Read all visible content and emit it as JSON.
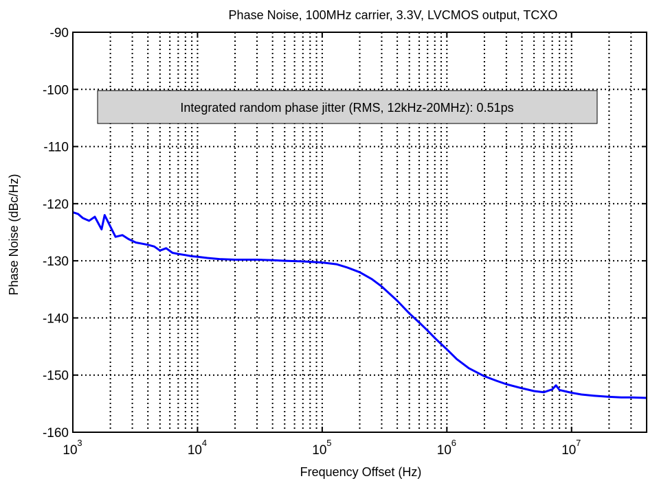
{
  "chart_data": {
    "type": "line",
    "title": "Phase Noise, 100MHz carrier, 3.3V, LVCMOS output, TCXO",
    "xlabel": "Frequency Offset (Hz)",
    "ylabel": "Phase Noise (dBc/Hz)",
    "x_scale": "log",
    "xlim": [
      1000,
      40000000
    ],
    "ylim": [
      -160,
      -90
    ],
    "x_ticks": [
      1000,
      10000,
      100000,
      1000000,
      10000000
    ],
    "x_tick_labels": [
      {
        "base": "10",
        "exp": "3"
      },
      {
        "base": "10",
        "exp": "4"
      },
      {
        "base": "10",
        "exp": "5"
      },
      {
        "base": "10",
        "exp": "6"
      },
      {
        "base": "10",
        "exp": "7"
      }
    ],
    "y_ticks": [
      -160,
      -150,
      -140,
      -130,
      -120,
      -110,
      -100,
      -90
    ],
    "y_tick_labels": [
      "-160",
      "-150",
      "-140",
      "-130",
      "-120",
      "-110",
      "-100",
      "-90"
    ],
    "grid": true,
    "grid_style": "dotted",
    "annotation": "Integrated random phase jitter (RMS, 12kHz-20MHz): 0.51ps",
    "series": [
      {
        "color": "#0000ff",
        "x": [
          1000,
          1100,
          1200,
          1350,
          1500,
          1700,
          1800,
          2000,
          2200,
          2500,
          2800,
          3200,
          3600,
          4000,
          4500,
          5000,
          5600,
          6300,
          7000,
          8000,
          9000,
          10000,
          12000,
          15000,
          20000,
          30000,
          40000,
          50000,
          70000,
          100000,
          130000,
          160000,
          200000,
          250000,
          300000,
          400000,
          500000,
          600000,
          700000,
          800000,
          1000000,
          1200000,
          1500000,
          2000000,
          2500000,
          3000000,
          4000000,
          5000000,
          6000000,
          7000000,
          7500000,
          8000000,
          10000000,
          12000000,
          15000000,
          20000000,
          25000000,
          30000000,
          40000000
        ],
        "y": [
          -121.5,
          -121.8,
          -122.5,
          -123,
          -122.3,
          -124.5,
          -122,
          -124,
          -125.8,
          -125.5,
          -126.2,
          -126.8,
          -127,
          -127.2,
          -127.5,
          -128.2,
          -127.8,
          -128.6,
          -128.8,
          -129.0,
          -129.2,
          -129.3,
          -129.5,
          -129.7,
          -129.8,
          -129.8,
          -129.9,
          -130.0,
          -130.1,
          -130.3,
          -130.6,
          -131.2,
          -132.0,
          -133.2,
          -134.5,
          -137.0,
          -139.2,
          -140.8,
          -142.2,
          -143.5,
          -145.5,
          -147.2,
          -148.8,
          -150.2,
          -151.0,
          -151.6,
          -152.3,
          -152.8,
          -153.0,
          -152.5,
          -151.8,
          -152.6,
          -153.1,
          -153.4,
          -153.6,
          -153.8,
          -153.9,
          -153.9,
          -154.0
        ]
      }
    ]
  }
}
